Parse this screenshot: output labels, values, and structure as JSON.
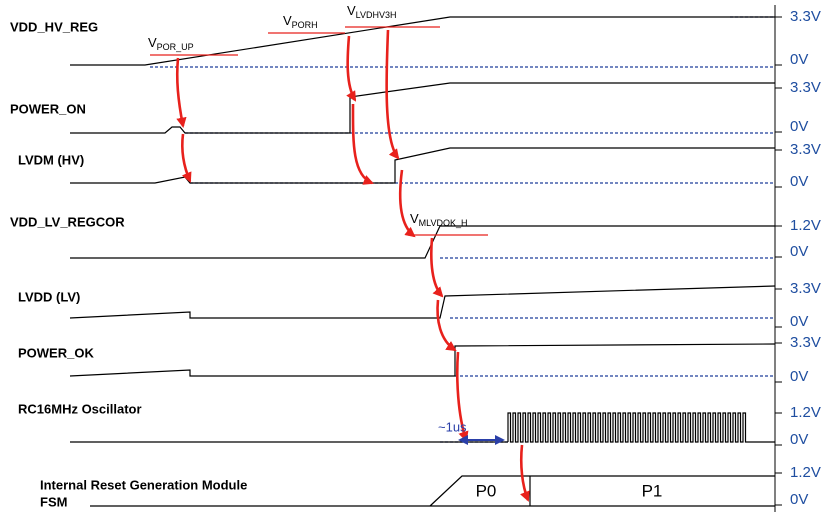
{
  "signals": [
    {
      "lines": [
        "VDD_HV_REG"
      ],
      "high": "3.3V",
      "low": "0V"
    },
    {
      "lines": [
        "POWER_ON"
      ],
      "high": "3.3V",
      "low": "0V"
    },
    {
      "lines": [
        "LVDM (HV)"
      ],
      "high": "3.3V",
      "low": "0V"
    },
    {
      "lines": [
        "VDD_LV_REGCOR"
      ],
      "high": "1.2V",
      "low": "0V"
    },
    {
      "lines": [
        "LVDD (LV)"
      ],
      "high": "3.3V",
      "low": "0V"
    },
    {
      "lines": [
        "POWER_OK"
      ],
      "high": "3.3V",
      "low": "0V"
    },
    {
      "lines": [
        "RC16MHz Oscillator"
      ],
      "high": "1.2V",
      "low": "0V"
    },
    {
      "lines": [
        "Internal Reset Generation Module",
        "FSM"
      ],
      "high": "1.2V",
      "low": "0V"
    }
  ],
  "thresholds": [
    {
      "symbol": "V",
      "subscript": "POR_UP"
    },
    {
      "symbol": "V",
      "subscript": "PORH"
    },
    {
      "symbol": "V",
      "subscript": "LVDHV3H"
    },
    {
      "symbol": "V",
      "subscript": "MLVDOK_H"
    }
  ],
  "annotations": {
    "delay": "~1us",
    "phase0": "P0",
    "phase1": "P1"
  }
}
